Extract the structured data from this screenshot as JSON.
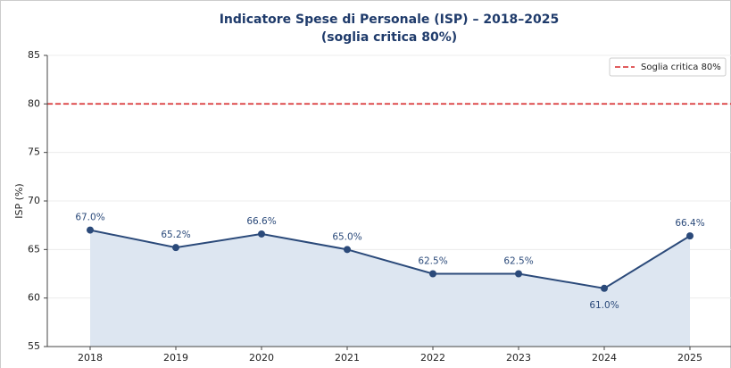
{
  "chart_data": {
    "type": "line",
    "title": "Indicatore Spese di Personale (ISP) – 2018–2025",
    "subtitle": "(soglia critica 80%)",
    "y_label": "ISP (%)",
    "x": [
      2018,
      2019,
      2020,
      2021,
      2022,
      2023,
      2024,
      2025
    ],
    "series": [
      {
        "name": "ISP",
        "color": "#2b4a7a",
        "fill": "#dde6f1",
        "values": [
          67.0,
          65.2,
          66.6,
          65.0,
          62.5,
          62.5,
          61.0,
          66.4
        ],
        "value_labels": [
          "67.0%",
          "65.2%",
          "66.6%",
          "65.0%",
          "62.5%",
          "62.5%",
          "61.0%",
          "66.4%"
        ]
      }
    ],
    "threshold": {
      "value": 80,
      "name": "Soglia critica 80%",
      "color": "#d62728"
    },
    "xlim": [
      2017.5,
      2025.5
    ],
    "xticks": [
      2018,
      2019,
      2020,
      2021,
      2022,
      2023,
      2024,
      2025
    ],
    "ylim": [
      55,
      85
    ],
    "yticks": [
      55,
      60,
      65,
      70,
      75,
      80,
      85
    ],
    "grid": true,
    "legend": "upper right"
  }
}
